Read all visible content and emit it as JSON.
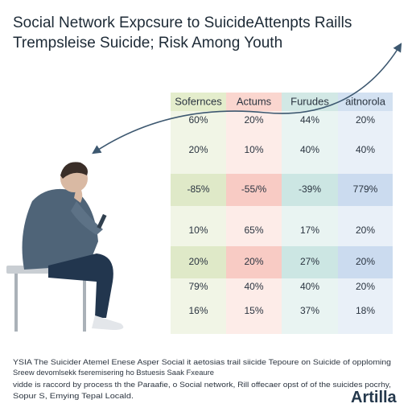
{
  "header": {
    "title_lines": [
      "Social Network Expcsure to SuicideAttenpts Raills",
      "Trempsleise Suicide; Risk Among Youth"
    ]
  },
  "table": {
    "columns": [
      "Sofernces",
      "Actums",
      "Furudes",
      "aitnorola"
    ],
    "rows": [
      [
        "60%",
        "20%",
        "44%",
        "20%"
      ],
      [
        "20%",
        "10%",
        "40%",
        "40%"
      ],
      [
        "-85%",
        "-55/%",
        "-39%",
        "779%"
      ],
      [
        "10%",
        "65%",
        "17%",
        "20%"
      ],
      [
        "20%",
        "20%",
        "27%",
        "20%"
      ],
      [
        "79%",
        "40%",
        "40%",
        "20%"
      ],
      [
        "16%",
        "15%",
        "37%",
        "18%"
      ]
    ]
  },
  "footer": {
    "lines": [
      "YSIA The Suicider Atemel Enese Asper Social it aetosias trail siicide Tepoure on Suicide of opploming",
      "Sreew devomlsekk fseremisering ho Bstuesis Saak Fxeaure",
      "vidde is raccord by process th the Paraafie, o Social network, Rill offecaer opst of of the suicides pocrhy,",
      "Sopur S, Emying Tepal Locald."
    ]
  },
  "logo": "Artilla"
}
